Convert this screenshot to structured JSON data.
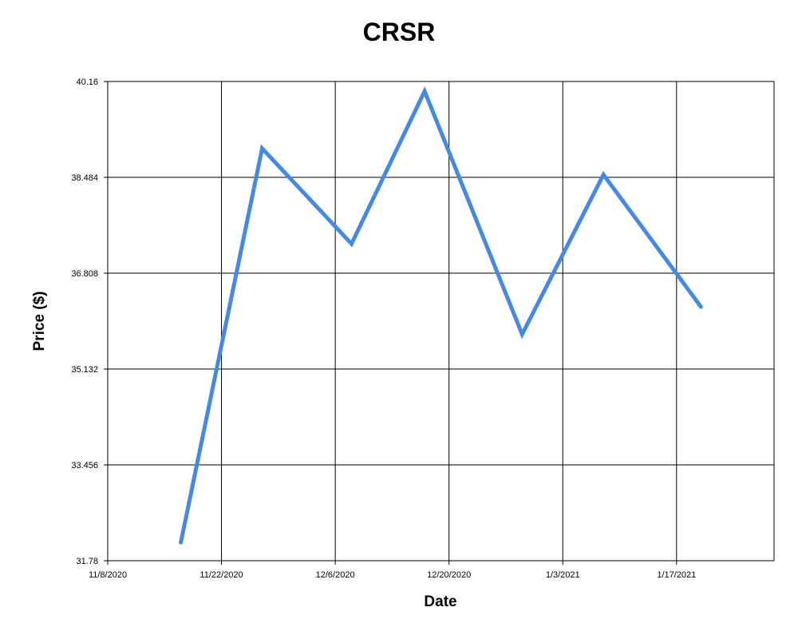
{
  "chart_data": {
    "type": "line",
    "title": "CRSR",
    "xlabel": "Date",
    "ylabel": "Price ($)",
    "x_ticks": [
      "11/8/2020",
      "11/22/2020",
      "12/6/2020",
      "12/20/2020",
      "1/3/2021",
      "1/17/2021"
    ],
    "y_ticks": [
      "31.78",
      "33.456",
      "35.132",
      "36.808",
      "38.484",
      "40.16"
    ],
    "xlim": [
      "2020-11-08",
      "2021-01-29"
    ],
    "ylim": [
      31.78,
      40.16
    ],
    "grid": true,
    "line_color": "#4589e6",
    "series": [
      {
        "x": [
          "2020-11-17",
          "2020-11-27",
          "2020-12-08",
          "2020-12-17",
          "2020-12-29",
          "2021-01-08",
          "2021-01-20"
        ],
        "y": [
          32.1,
          38.99,
          37.32,
          39.99,
          35.74,
          38.53,
          36.22
        ]
      }
    ]
  }
}
